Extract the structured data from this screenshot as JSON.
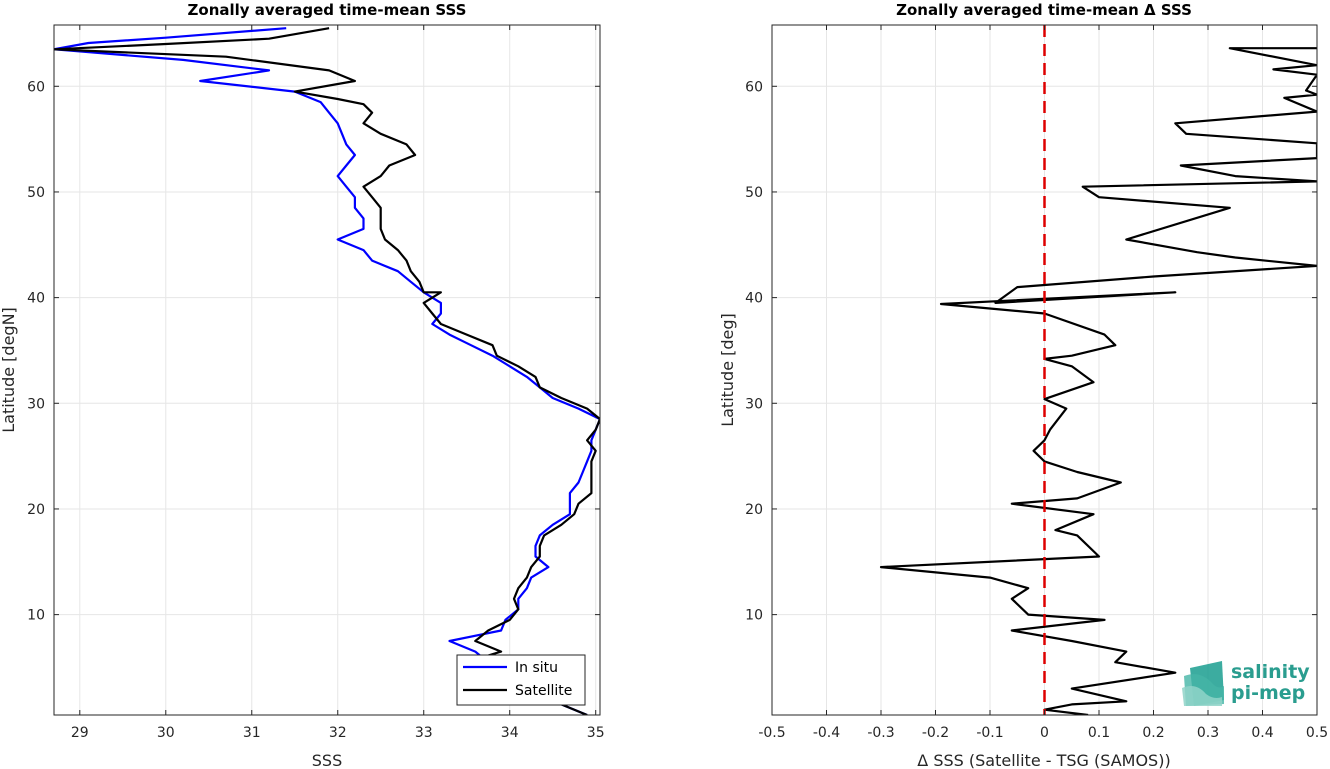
{
  "chart_data": [
    {
      "type": "line",
      "title": "Zonally averaged time-mean SSS",
      "xlabel": "SSS",
      "ylabel": "Latitude [degN]",
      "xlim": [
        28.7,
        35.05
      ],
      "ylim": [
        0.5,
        65.8
      ],
      "xticks": [
        29,
        30,
        31,
        32,
        33,
        34,
        35
      ],
      "yticks": [
        10,
        20,
        30,
        40,
        50,
        60
      ],
      "grid": true,
      "legend_position": "bottom-right",
      "series": [
        {
          "name": "In situ",
          "color": "#0000ff",
          "points": [
            [
              31.4,
              65.5
            ],
            [
              30.0,
              64.6
            ],
            [
              29.1,
              64.1
            ],
            [
              28.7,
              63.5
            ],
            [
              30.2,
              62.5
            ],
            [
              31.2,
              61.5
            ],
            [
              30.4,
              60.5
            ],
            [
              31.5,
              59.5
            ],
            [
              31.8,
              58.5
            ],
            [
              31.9,
              57.5
            ],
            [
              32.0,
              56.5
            ],
            [
              32.05,
              55.5
            ],
            [
              32.1,
              54.5
            ],
            [
              32.2,
              53.5
            ],
            [
              32.1,
              52.5
            ],
            [
              32.0,
              51.5
            ],
            [
              32.1,
              50.5
            ],
            [
              32.2,
              49.5
            ],
            [
              32.2,
              48.5
            ],
            [
              32.3,
              47.5
            ],
            [
              32.3,
              46.5
            ],
            [
              32.0,
              45.5
            ],
            [
              32.3,
              44.5
            ],
            [
              32.4,
              43.5
            ],
            [
              32.7,
              42.5
            ],
            [
              32.85,
              41.5
            ],
            [
              33.0,
              40.5
            ],
            [
              33.2,
              39.5
            ],
            [
              33.2,
              38.5
            ],
            [
              33.1,
              37.5
            ],
            [
              33.3,
              36.5
            ],
            [
              33.55,
              35.5
            ],
            [
              33.8,
              34.5
            ],
            [
              34.0,
              33.5
            ],
            [
              34.2,
              32.5
            ],
            [
              34.35,
              31.5
            ],
            [
              34.5,
              30.5
            ],
            [
              34.8,
              29.5
            ],
            [
              35.05,
              28.5
            ],
            [
              35.0,
              27.5
            ],
            [
              34.95,
              26.5
            ],
            [
              34.95,
              25.5
            ],
            [
              34.9,
              24.5
            ],
            [
              34.85,
              23.5
            ],
            [
              34.8,
              22.5
            ],
            [
              34.7,
              21.5
            ],
            [
              34.7,
              20.5
            ],
            [
              34.7,
              19.5
            ],
            [
              34.5,
              18.5
            ],
            [
              34.35,
              17.5
            ],
            [
              34.3,
              16.5
            ],
            [
              34.3,
              15.5
            ],
            [
              34.45,
              14.5
            ],
            [
              34.25,
              13.5
            ],
            [
              34.2,
              12.5
            ],
            [
              34.1,
              11.5
            ],
            [
              34.1,
              10.5
            ],
            [
              33.95,
              9.5
            ],
            [
              33.9,
              8.5
            ],
            [
              33.3,
              7.5
            ],
            [
              33.6,
              6.5
            ],
            [
              33.75,
              5.5
            ],
            [
              33.8,
              4.5
            ],
            [
              34.0,
              3.5
            ],
            [
              34.3,
              2.5
            ],
            [
              34.6,
              1.5
            ],
            [
              34.9,
              0.5
            ]
          ]
        },
        {
          "name": "Satellite",
          "color": "#000000",
          "points": [
            [
              31.9,
              65.5
            ],
            [
              31.2,
              64.5
            ],
            [
              30.0,
              64.0
            ],
            [
              28.7,
              63.5
            ],
            [
              30.7,
              62.8
            ],
            [
              31.9,
              61.5
            ],
            [
              32.2,
              60.5
            ],
            [
              31.5,
              59.5
            ],
            [
              32.0,
              58.8
            ],
            [
              32.3,
              58.3
            ],
            [
              32.4,
              57.5
            ],
            [
              32.3,
              56.5
            ],
            [
              32.5,
              55.5
            ],
            [
              32.8,
              54.5
            ],
            [
              32.9,
              53.5
            ],
            [
              32.6,
              52.5
            ],
            [
              32.5,
              51.5
            ],
            [
              32.3,
              50.5
            ],
            [
              32.4,
              49.5
            ],
            [
              32.5,
              48.5
            ],
            [
              32.5,
              47.5
            ],
            [
              32.5,
              46.5
            ],
            [
              32.55,
              45.5
            ],
            [
              32.7,
              44.5
            ],
            [
              32.8,
              43.5
            ],
            [
              32.85,
              42.5
            ],
            [
              32.95,
              41.5
            ],
            [
              33.0,
              40.5
            ],
            [
              33.2,
              40.5
            ],
            [
              33.0,
              39.5
            ],
            [
              33.1,
              38.5
            ],
            [
              33.2,
              37.5
            ],
            [
              33.5,
              36.5
            ],
            [
              33.8,
              35.5
            ],
            [
              33.85,
              34.5
            ],
            [
              34.1,
              33.5
            ],
            [
              34.3,
              32.5
            ],
            [
              34.35,
              31.5
            ],
            [
              34.6,
              30.5
            ],
            [
              34.9,
              29.5
            ],
            [
              35.05,
              28.5
            ],
            [
              35.0,
              27.5
            ],
            [
              34.9,
              26.5
            ],
            [
              35.0,
              25.5
            ],
            [
              34.95,
              24.5
            ],
            [
              34.95,
              23.5
            ],
            [
              34.95,
              22.5
            ],
            [
              34.95,
              21.5
            ],
            [
              34.8,
              20.5
            ],
            [
              34.75,
              19.5
            ],
            [
              34.6,
              18.5
            ],
            [
              34.4,
              17.5
            ],
            [
              34.35,
              16.5
            ],
            [
              34.35,
              15.5
            ],
            [
              34.25,
              14.5
            ],
            [
              34.2,
              13.5
            ],
            [
              34.1,
              12.5
            ],
            [
              34.05,
              11.5
            ],
            [
              34.1,
              10.5
            ],
            [
              34.0,
              9.5
            ],
            [
              33.75,
              8.5
            ],
            [
              33.6,
              7.5
            ],
            [
              33.9,
              6.5
            ],
            [
              33.5,
              5.5
            ],
            [
              33.7,
              4.5
            ],
            [
              34.0,
              3.5
            ],
            [
              34.4,
              2.5
            ],
            [
              34.6,
              1.5
            ],
            [
              34.9,
              0.5
            ]
          ]
        }
      ]
    },
    {
      "type": "line",
      "title": "Zonally averaged time-mean Δ SSS",
      "xlabel": "Δ SSS (Satellite - TSG (SAMOS))",
      "ylabel": "Latitude [deg]",
      "xlim": [
        -0.5,
        0.5
      ],
      "ylim": [
        0.5,
        65.8
      ],
      "xticks": [
        -0.5,
        -0.4,
        -0.3,
        -0.2,
        -0.1,
        0,
        0.1,
        0.2,
        0.3,
        0.4,
        0.5
      ],
      "xticklabels": [
        "-0.5",
        "-0.4",
        "-0.3",
        "-0.2",
        "-0.1",
        "0",
        "0.1",
        "0.2",
        "0.3",
        "0.4",
        "0.5"
      ],
      "yticks": [
        10,
        20,
        30,
        40,
        50,
        60
      ],
      "grid": true,
      "reference_line": {
        "x": 0,
        "color": "#dd0000",
        "style": "dashed"
      },
      "series": [
        {
          "color": "#000000",
          "points": [
            [
              0.5,
              63.6
            ],
            [
              0.34,
              63.6
            ],
            [
              0.5,
              62.0
            ],
            [
              0.42,
              61.6
            ],
            [
              0.5,
              61.1
            ],
            [
              0.48,
              59.6
            ],
            [
              0.5,
              59.2
            ],
            [
              0.44,
              58.9
            ],
            [
              0.5,
              57.6
            ],
            [
              0.24,
              56.5
            ],
            [
              0.26,
              55.5
            ],
            [
              0.5,
              54.6
            ],
            [
              0.5,
              53.2
            ],
            [
              0.25,
              52.5
            ],
            [
              0.35,
              51.5
            ],
            [
              0.5,
              51.0
            ],
            [
              0.07,
              50.5
            ],
            [
              0.1,
              49.5
            ],
            [
              0.34,
              48.5
            ],
            [
              0.15,
              45.5
            ],
            [
              0.28,
              44.3
            ],
            [
              0.35,
              43.8
            ],
            [
              0.5,
              43.0
            ],
            [
              0.2,
              42.0
            ],
            [
              -0.05,
              41.0
            ],
            [
              -0.09,
              39.5
            ],
            [
              0.24,
              40.5
            ],
            [
              -0.19,
              39.4
            ],
            [
              0.0,
              38.5
            ],
            [
              0.11,
              36.5
            ],
            [
              0.13,
              35.5
            ],
            [
              0.05,
              34.5
            ],
            [
              0.0,
              34.2
            ],
            [
              0.05,
              33.5
            ],
            [
              0.09,
              32.0
            ],
            [
              0.0,
              30.4
            ],
            [
              0.04,
              29.5
            ],
            [
              0.01,
              27.5
            ],
            [
              0.0,
              26.5
            ],
            [
              -0.02,
              25.5
            ],
            [
              0.0,
              24.5
            ],
            [
              0.06,
              23.5
            ],
            [
              0.14,
              22.5
            ],
            [
              0.06,
              21.0
            ],
            [
              -0.06,
              20.5
            ],
            [
              0.09,
              19.5
            ],
            [
              0.02,
              18.0
            ],
            [
              0.06,
              17.5
            ],
            [
              0.1,
              15.5
            ],
            [
              -0.3,
              14.5
            ],
            [
              -0.1,
              13.5
            ],
            [
              -0.03,
              12.5
            ],
            [
              -0.06,
              11.5
            ],
            [
              -0.03,
              10.0
            ],
            [
              0.11,
              9.5
            ],
            [
              -0.06,
              8.5
            ],
            [
              0.05,
              7.5
            ],
            [
              0.15,
              6.5
            ],
            [
              0.13,
              5.5
            ],
            [
              0.24,
              4.5
            ],
            [
              0.05,
              3.0
            ],
            [
              0.15,
              1.8
            ],
            [
              0.05,
              1.5
            ],
            [
              0.0,
              1.0
            ],
            [
              0.08,
              0.5
            ]
          ]
        }
      ]
    }
  ],
  "legend": {
    "items": [
      {
        "label": "In situ",
        "color": "#0000ff"
      },
      {
        "label": "Satellite",
        "color": "#000000"
      }
    ]
  },
  "logo": {
    "line1": "salinity",
    "line2": "pi-mep"
  }
}
